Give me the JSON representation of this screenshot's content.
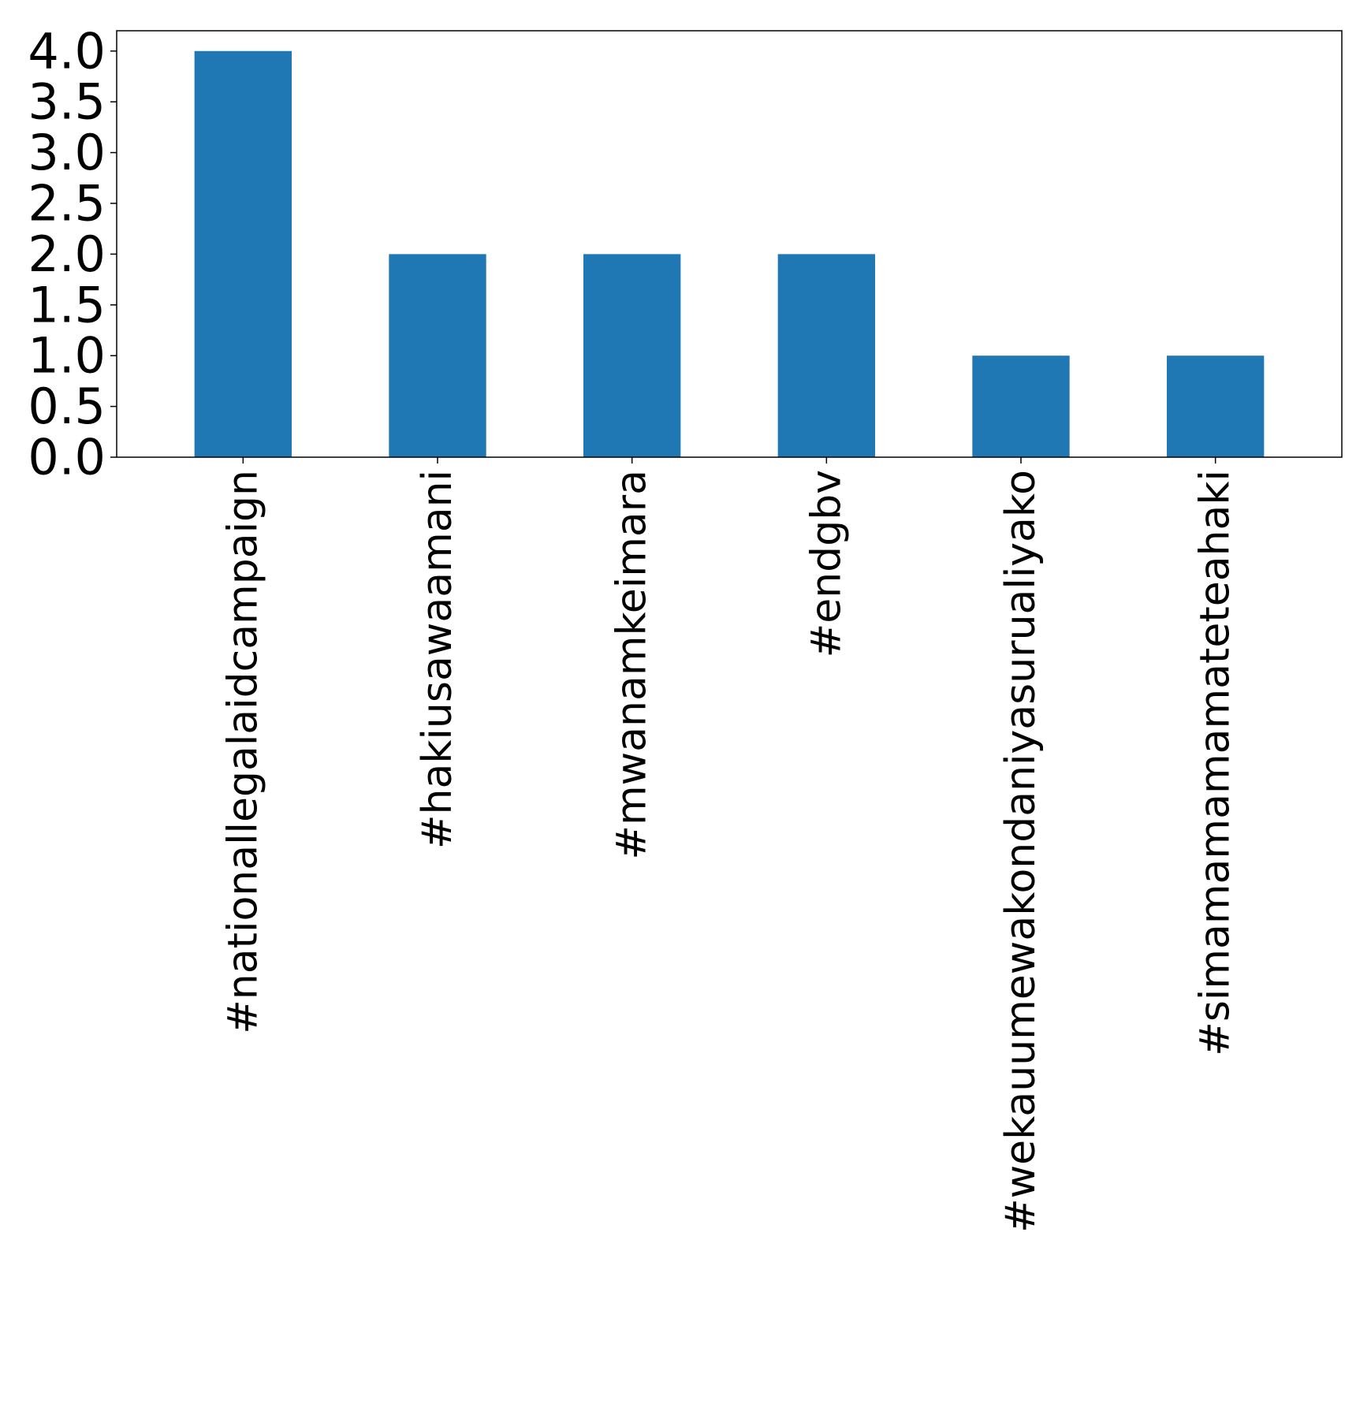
{
  "chart_data": {
    "type": "bar",
    "title": "",
    "xlabel": "",
    "ylabel": "",
    "categories": [
      "#nationallegalaidcampaign",
      "#hakiusawaamani",
      "#mwanamkeimara",
      "#endgbv",
      "#wekauumewakondaniyasurualiyako",
      "#simamamamamateteahaki"
    ],
    "values": [
      4,
      2,
      2,
      2,
      1,
      1
    ],
    "ylim": [
      0,
      4.2
    ],
    "yticks": [
      "0.0",
      "0.5",
      "1.0",
      "1.5",
      "2.0",
      "2.5",
      "3.0",
      "3.5",
      "4.0"
    ],
    "bar_color": "#1f77b4",
    "grid": false,
    "legend": false
  }
}
